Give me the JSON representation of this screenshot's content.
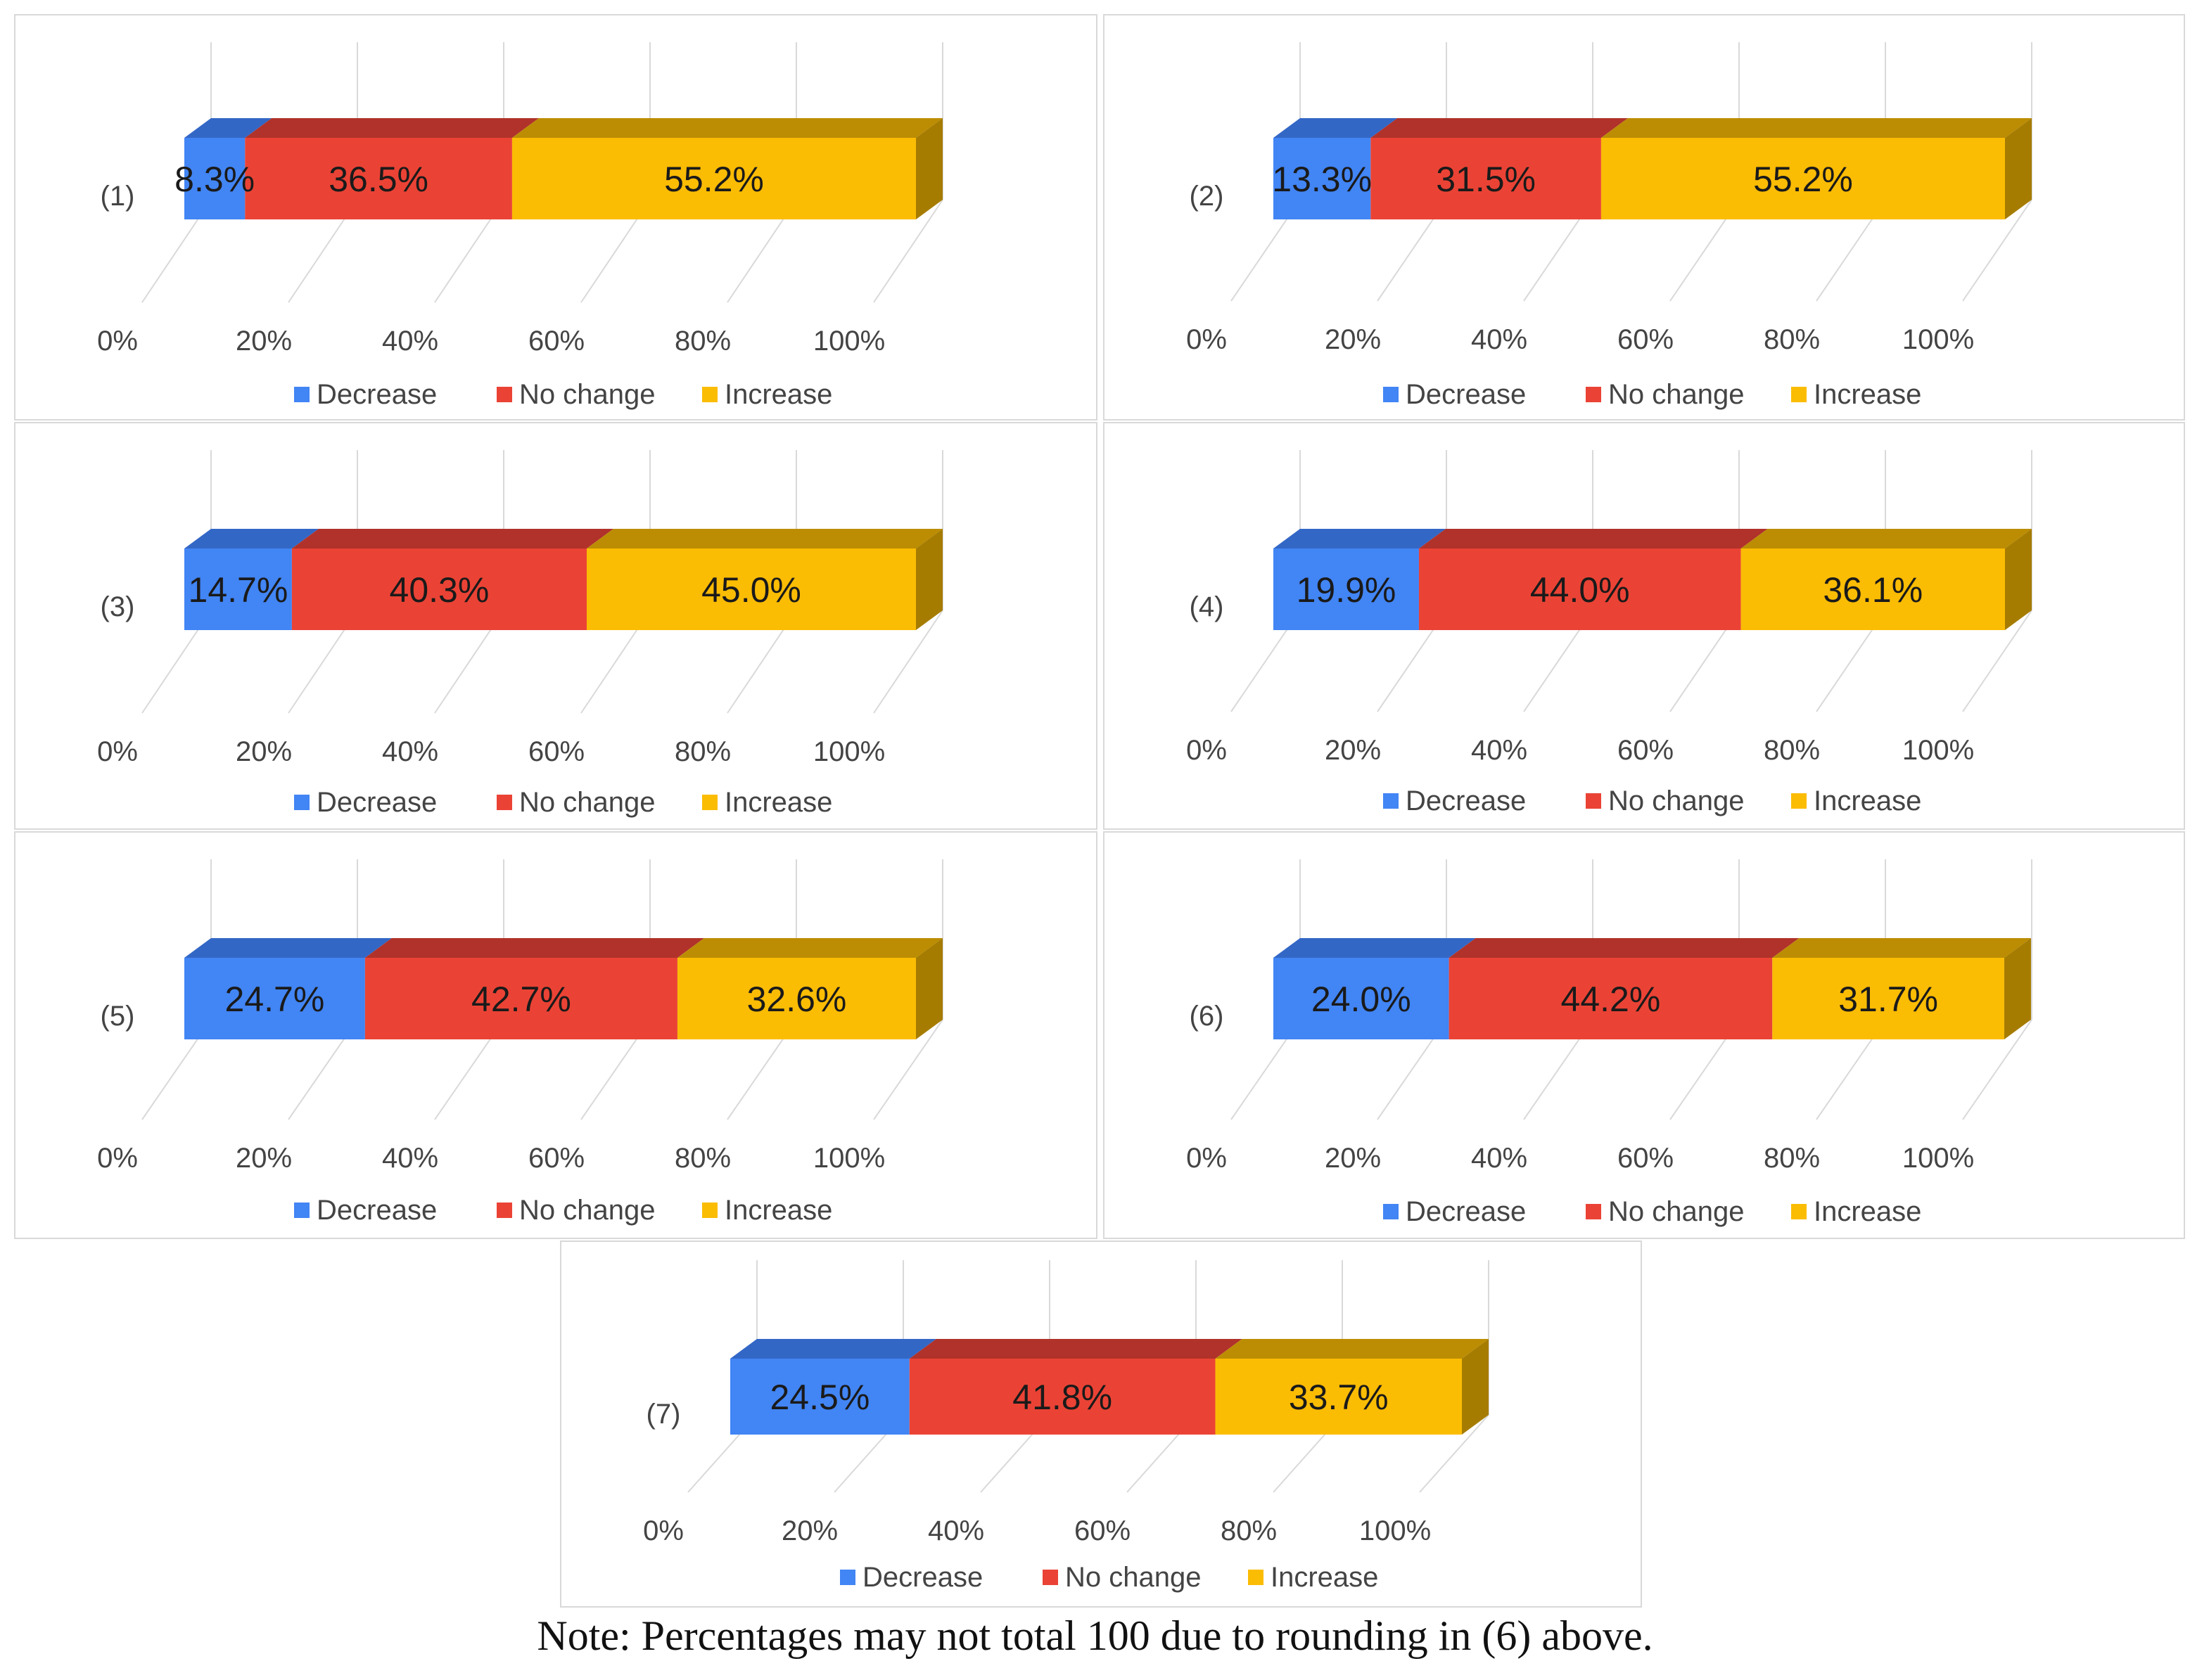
{
  "colors": {
    "decrease": "#4285F4",
    "decrease_top": "#3367C6",
    "decrease_side": "#2E5BA8",
    "no_change": "#EA4335",
    "no_change_top": "#B0322A",
    "no_change_side": "#9E2C25",
    "increase": "#FBBC04",
    "increase_top": "#BC8D03",
    "increase_side": "#A67C00",
    "gridline": "#d9d9d9",
    "axis_text": "#444444",
    "label_text": "#1a1a1a"
  },
  "chart_data": [
    {
      "type": "bar",
      "orientation": "horizontal",
      "stacked": true,
      "category": "(1)",
      "series": [
        {
          "name": "Decrease",
          "value": 8.3,
          "label": "8.3%"
        },
        {
          "name": "No change",
          "value": 36.5,
          "label": "36.5%"
        },
        {
          "name": "Increase",
          "value": 55.2,
          "label": "55.2%"
        }
      ],
      "xticks": [
        "0%",
        "20%",
        "40%",
        "60%",
        "80%",
        "100%"
      ],
      "xlim": [
        0,
        100
      ],
      "legend": [
        "Decrease",
        "No change",
        "Increase"
      ]
    },
    {
      "type": "bar",
      "orientation": "horizontal",
      "stacked": true,
      "category": "(2)",
      "series": [
        {
          "name": "Decrease",
          "value": 13.3,
          "label": "13.3%"
        },
        {
          "name": "No change",
          "value": 31.5,
          "label": "31.5%"
        },
        {
          "name": "Increase",
          "value": 55.2,
          "label": "55.2%"
        }
      ],
      "xticks": [
        "0%",
        "20%",
        "40%",
        "60%",
        "80%",
        "100%"
      ],
      "xlim": [
        0,
        100
      ],
      "legend": [
        "Decrease",
        "No change",
        "Increase"
      ]
    },
    {
      "type": "bar",
      "orientation": "horizontal",
      "stacked": true,
      "category": "(3)",
      "series": [
        {
          "name": "Decrease",
          "value": 14.7,
          "label": "14.7%"
        },
        {
          "name": "No change",
          "value": 40.3,
          "label": "40.3%"
        },
        {
          "name": "Increase",
          "value": 45.0,
          "label": "45.0%"
        }
      ],
      "xticks": [
        "0%",
        "20%",
        "40%",
        "60%",
        "80%",
        "100%"
      ],
      "xlim": [
        0,
        100
      ],
      "legend": [
        "Decrease",
        "No change",
        "Increase"
      ]
    },
    {
      "type": "bar",
      "orientation": "horizontal",
      "stacked": true,
      "category": "(4)",
      "series": [
        {
          "name": "Decrease",
          "value": 19.9,
          "label": "19.9%"
        },
        {
          "name": "No change",
          "value": 44.0,
          "label": "44.0%"
        },
        {
          "name": "Increase",
          "value": 36.1,
          "label": "36.1%"
        }
      ],
      "xticks": [
        "0%",
        "20%",
        "40%",
        "60%",
        "80%",
        "100%"
      ],
      "xlim": [
        0,
        100
      ],
      "legend": [
        "Decrease",
        "No change",
        "Increase"
      ]
    },
    {
      "type": "bar",
      "orientation": "horizontal",
      "stacked": true,
      "category": "(5)",
      "series": [
        {
          "name": "Decrease",
          "value": 24.7,
          "label": "24.7%"
        },
        {
          "name": "No change",
          "value": 42.7,
          "label": "42.7%"
        },
        {
          "name": "Increase",
          "value": 32.6,
          "label": "32.6%"
        }
      ],
      "xticks": [
        "0%",
        "20%",
        "40%",
        "60%",
        "80%",
        "100%"
      ],
      "xlim": [
        0,
        100
      ],
      "legend": [
        "Decrease",
        "No change",
        "Increase"
      ]
    },
    {
      "type": "bar",
      "orientation": "horizontal",
      "stacked": true,
      "category": "(6)",
      "series": [
        {
          "name": "Decrease",
          "value": 24.0,
          "label": "24.0%"
        },
        {
          "name": "No change",
          "value": 44.2,
          "label": "44.2%"
        },
        {
          "name": "Increase",
          "value": 31.7,
          "label": "31.7%"
        }
      ],
      "xticks": [
        "0%",
        "20%",
        "40%",
        "60%",
        "80%",
        "100%"
      ],
      "xlim": [
        0,
        100
      ],
      "legend": [
        "Decrease",
        "No change",
        "Increase"
      ]
    },
    {
      "type": "bar",
      "orientation": "horizontal",
      "stacked": true,
      "category": "(7)",
      "series": [
        {
          "name": "Decrease",
          "value": 24.5,
          "label": "24.5%"
        },
        {
          "name": "No change",
          "value": 41.8,
          "label": "41.8%"
        },
        {
          "name": "Increase",
          "value": 33.7,
          "label": "33.7%"
        }
      ],
      "xticks": [
        "0%",
        "20%",
        "40%",
        "60%",
        "80%",
        "100%"
      ],
      "xlim": [
        0,
        100
      ],
      "legend": [
        "Decrease",
        "No change",
        "Increase"
      ]
    }
  ],
  "note": "Note: Percentages may not total 100 due to rounding in (6) above."
}
